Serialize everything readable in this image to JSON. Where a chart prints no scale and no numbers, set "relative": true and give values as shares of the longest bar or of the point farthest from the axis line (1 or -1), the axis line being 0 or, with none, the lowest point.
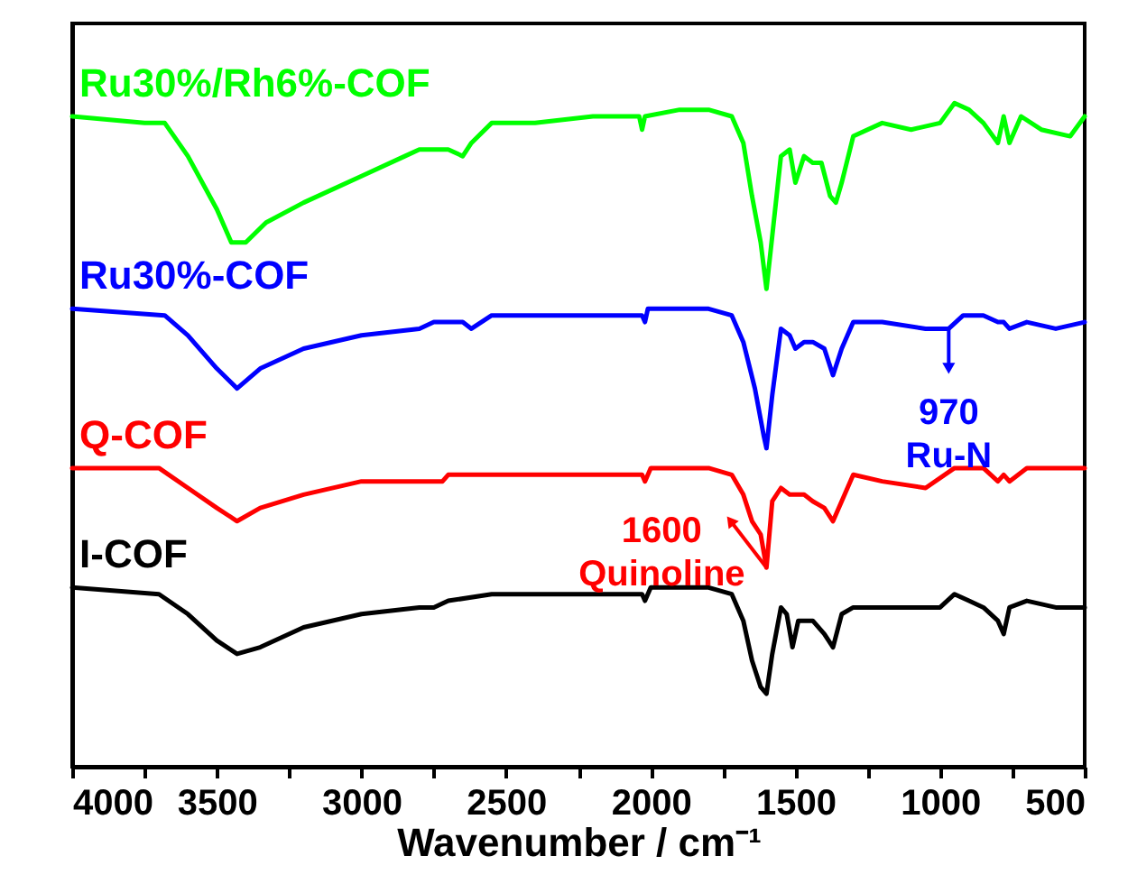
{
  "chart_data": {
    "type": "line",
    "relative": true,
    "xlabel": "Wavenumber / cm⁻¹",
    "xlim": [
      4000,
      500
    ],
    "xticks": [
      4000,
      {
        "value": 3750,
        "label": null
      },
      3500,
      {
        "value": 3250,
        "label": null
      },
      3000,
      {
        "value": 2750,
        "label": null
      },
      2500,
      {
        "value": 2250,
        "label": null
      },
      2000,
      {
        "value": 1750,
        "label": null
      },
      1500,
      {
        "value": 1250,
        "label": null
      },
      1000,
      {
        "value": 750,
        "label": null
      },
      500
    ],
    "grid": false,
    "marker": "none",
    "line_style": "solid",
    "series": [
      {
        "name": "Ru30%/Rh6%-COF",
        "color": "#00ff00",
        "x": [
          4000,
          3750,
          3680,
          3600,
          3500,
          3450,
          3400,
          3330,
          3200,
          3000,
          2850,
          2800,
          2750,
          2700,
          2650,
          2620,
          2550,
          2400,
          2200,
          2040,
          2030,
          2020,
          1900,
          1800,
          1720,
          1680,
          1650,
          1620,
          1600,
          1580,
          1550,
          1520,
          1500,
          1470,
          1440,
          1410,
          1380,
          1360,
          1340,
          1300,
          1200,
          1100,
          1000,
          950,
          900,
          850,
          800,
          780,
          760,
          720,
          650,
          550,
          500
        ],
        "values": [
          0.98,
          0.97,
          0.97,
          0.92,
          0.84,
          0.79,
          0.79,
          0.82,
          0.85,
          0.89,
          0.92,
          0.93,
          0.93,
          0.93,
          0.92,
          0.94,
          0.97,
          0.97,
          0.98,
          0.98,
          0.96,
          0.98,
          0.99,
          0.99,
          0.98,
          0.94,
          0.86,
          0.79,
          0.72,
          0.8,
          0.92,
          0.93,
          0.88,
          0.92,
          0.91,
          0.91,
          0.86,
          0.85,
          0.88,
          0.95,
          0.97,
          0.96,
          0.97,
          1.0,
          0.99,
          0.97,
          0.94,
          0.98,
          0.94,
          0.98,
          0.96,
          0.95,
          0.98
        ]
      },
      {
        "name": "Ru30%-COF",
        "color": "#0000ff",
        "x": [
          4000,
          3680,
          3600,
          3500,
          3430,
          3350,
          3200,
          3000,
          2800,
          2750,
          2650,
          2620,
          2550,
          2200,
          2030,
          2020,
          2010,
          1800,
          1720,
          1680,
          1640,
          1610,
          1600,
          1580,
          1550,
          1520,
          1500,
          1470,
          1440,
          1400,
          1370,
          1340,
          1300,
          1200,
          1050,
          970,
          920,
          850,
          800,
          780,
          760,
          700,
          600,
          500
        ],
        "values": [
          0.69,
          0.68,
          0.65,
          0.6,
          0.57,
          0.6,
          0.63,
          0.65,
          0.66,
          0.67,
          0.67,
          0.66,
          0.68,
          0.68,
          0.68,
          0.67,
          0.69,
          0.69,
          0.68,
          0.64,
          0.57,
          0.5,
          0.48,
          0.56,
          0.66,
          0.65,
          0.63,
          0.64,
          0.64,
          0.63,
          0.59,
          0.63,
          0.67,
          0.67,
          0.66,
          0.66,
          0.68,
          0.68,
          0.67,
          0.67,
          0.66,
          0.67,
          0.66,
          0.67
        ]
      },
      {
        "name": "Q-COF",
        "color": "#ff0000",
        "x": [
          4000,
          3700,
          3600,
          3500,
          3430,
          3350,
          3200,
          3000,
          2800,
          2720,
          2700,
          2500,
          2030,
          2020,
          2000,
          1800,
          1720,
          1680,
          1650,
          1620,
          1600,
          1580,
          1550,
          1520,
          1500,
          1470,
          1440,
          1400,
          1370,
          1340,
          1300,
          1200,
          1050,
          950,
          850,
          800,
          780,
          760,
          700,
          550,
          500
        ],
        "values": [
          0.45,
          0.45,
          0.42,
          0.39,
          0.37,
          0.39,
          0.41,
          0.43,
          0.43,
          0.43,
          0.44,
          0.44,
          0.44,
          0.43,
          0.45,
          0.45,
          0.44,
          0.41,
          0.37,
          0.35,
          0.3,
          0.4,
          0.42,
          0.41,
          0.41,
          0.41,
          0.4,
          0.39,
          0.37,
          0.4,
          0.44,
          0.43,
          0.42,
          0.45,
          0.45,
          0.43,
          0.44,
          0.43,
          0.45,
          0.45,
          0.45
        ]
      },
      {
        "name": "I-COF",
        "color": "#000000",
        "x": [
          4000,
          3700,
          3600,
          3500,
          3430,
          3350,
          3200,
          3000,
          2800,
          2750,
          2700,
          2550,
          2200,
          2030,
          2020,
          2000,
          1800,
          1720,
          1680,
          1650,
          1620,
          1600,
          1580,
          1550,
          1530,
          1510,
          1490,
          1440,
          1400,
          1370,
          1340,
          1300,
          1200,
          1100,
          1000,
          950,
          900,
          850,
          800,
          780,
          760,
          700,
          600,
          500
        ],
        "values": [
          0.27,
          0.26,
          0.23,
          0.19,
          0.17,
          0.18,
          0.21,
          0.23,
          0.24,
          0.24,
          0.25,
          0.26,
          0.26,
          0.26,
          0.25,
          0.27,
          0.27,
          0.26,
          0.22,
          0.16,
          0.12,
          0.11,
          0.17,
          0.24,
          0.23,
          0.18,
          0.22,
          0.22,
          0.2,
          0.18,
          0.23,
          0.24,
          0.24,
          0.24,
          0.24,
          0.26,
          0.25,
          0.24,
          0.22,
          0.2,
          0.24,
          0.25,
          0.24,
          0.24
        ]
      }
    ],
    "annotations": [
      {
        "text": "1600\nQuinoline",
        "x": 1600,
        "y": 0.3
      },
      {
        "text": "970\nRu-N",
        "x": 970,
        "y": 0.66
      }
    ]
  }
}
